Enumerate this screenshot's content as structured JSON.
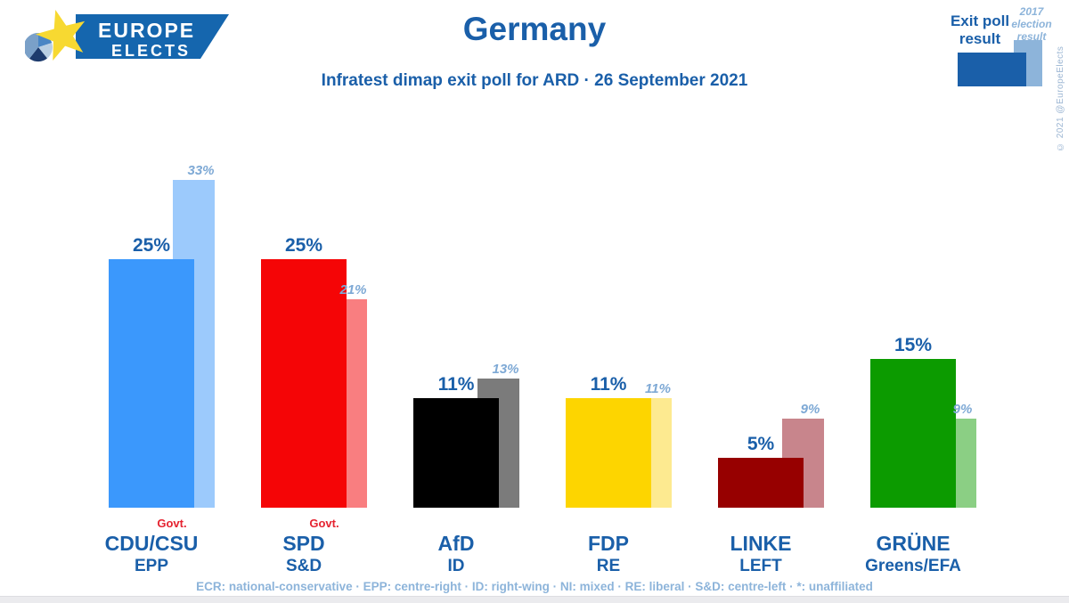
{
  "logo": {
    "line1": "EUROPE",
    "line2": "ELECTS"
  },
  "header": {
    "title": "Germany",
    "subtitle": "Infratest dimap exit poll for ARD · 26 September 2021"
  },
  "legend": {
    "exit_poll": {
      "line1": "Exit poll",
      "line2": "result"
    },
    "election_2017": {
      "line1": "2017",
      "line2": "election",
      "line3": "result"
    },
    "exit_poll_color": "#1a5fa9",
    "election_2017_color": "#8db4da"
  },
  "copyright": "© 2021 @EuropeElects",
  "chart_data": {
    "type": "bar",
    "title": "Germany",
    "subtitle": "Infratest dimap exit poll for ARD · 26 September 2021",
    "unit": "%",
    "categories": [
      "CDU/CSU",
      "SPD",
      "AfD",
      "FDP",
      "LINKE",
      "GRÜNE"
    ],
    "category_groups": [
      "EPP",
      "S&D",
      "ID",
      "RE",
      "LEFT",
      "Greens/EFA"
    ],
    "series": [
      {
        "name": "Exit poll result",
        "values": [
          25,
          25,
          11,
          11,
          5,
          15
        ],
        "labels": [
          "25%",
          "25%",
          "11%",
          "11%",
          "5%",
          "15%"
        ],
        "colors": [
          "#3b98fc",
          "#f50506",
          "#000000",
          "#fdd500",
          "#970000",
          "#0c9b00"
        ]
      },
      {
        "name": "2017 election result",
        "values": [
          33,
          21,
          13,
          11,
          9,
          9
        ],
        "labels": [
          "33%",
          "21%",
          "13%",
          "11%",
          "9%",
          "9%"
        ],
        "colors": [
          "#9ccafc",
          "#f97e80",
          "#7b7b7b",
          "#fdea90",
          "#c8858c",
          "#8bcf84"
        ]
      }
    ],
    "government_parties": [
      "CDU/CSU",
      "SPD"
    ],
    "govt_label": "Govt.",
    "ylim": [
      0,
      35
    ],
    "grid": false,
    "legend_position": "top-right",
    "value_label_color": "#1a5fa9",
    "value_label_2017_color": "#7ea9d5",
    "govt_label_color": "#e52330"
  },
  "footer": {
    "text": "ECR: national-conservative · EPP: centre-right · ID: right-wing · NI: mixed · RE: liberal · S&D: centre-left · *: unaffiliated"
  }
}
